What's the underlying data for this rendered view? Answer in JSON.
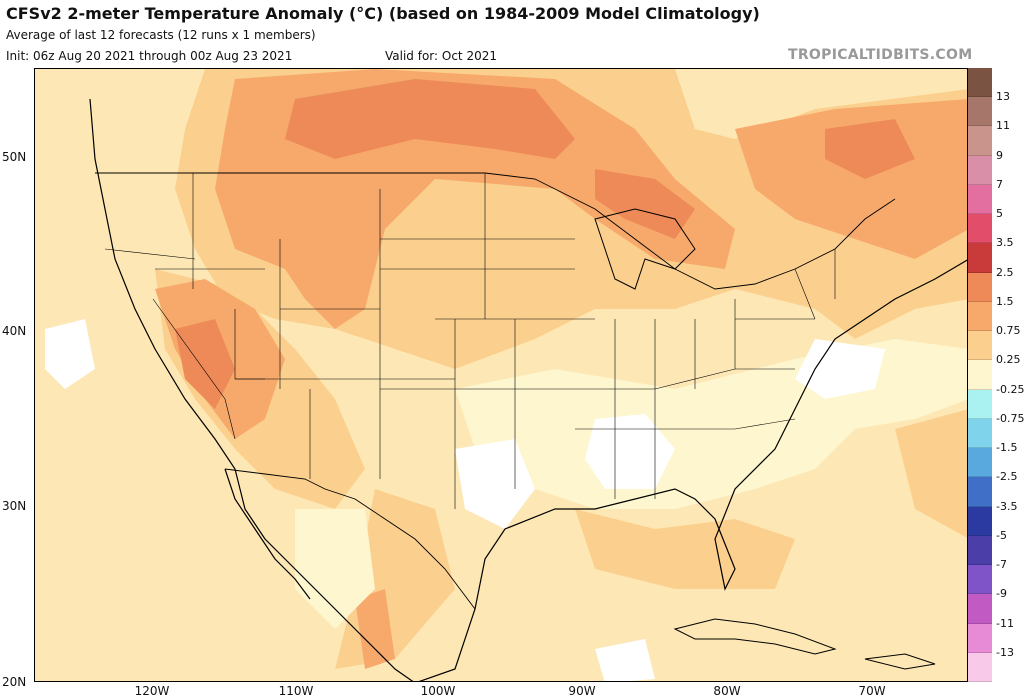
{
  "header": {
    "title": "CFSv2 2-meter Temperature Anomaly (°C) (based on 1984-2009 Model Climatology)",
    "subtitle": "Average of last 12 forecasts (12 runs x 1 members)",
    "init": "Init: 06z Aug 20 2021 through 00z Aug 23 2021",
    "valid": "Valid for: Oct 2021",
    "credit": "TROPICALTIDBITS.COM"
  },
  "map": {
    "lat_labels": [
      "50N",
      "40N",
      "30N",
      "20N"
    ],
    "lon_labels": [
      "120W",
      "110W",
      "100W",
      "90W",
      "80W",
      "70W"
    ],
    "colors": {
      "background": "#fde8b5",
      "anom_025": "#fdf6cf",
      "anom_075": "#fbd08e",
      "anom_15": "#f6a96a",
      "anom_25": "#ee8a58",
      "neutral": "#ffffff",
      "boundary": "#000000"
    }
  },
  "legend": {
    "labels": [
      "13",
      "11",
      "9",
      "7",
      "5",
      "3.5",
      "2.5",
      "1.5",
      "0.75",
      "0.25",
      "-0.25",
      "-0.75",
      "-1.5",
      "-2.5",
      "-3.5",
      "-5",
      "-7",
      "-9",
      "-11",
      "-13"
    ],
    "colors": [
      "#7a5343",
      "#a6766a",
      "#c9948c",
      "#d98fa8",
      "#e36fa0",
      "#e24e6a",
      "#c93a3a",
      "#ee8a58",
      "#f6a96a",
      "#fbd08e",
      "#fdf6cf",
      "#aaf2f2",
      "#7fd3ea",
      "#5aa9de",
      "#3f6fc7",
      "#2b3aa0",
      "#4b3ea8",
      "#7f54c8",
      "#c15bc3",
      "#e88bd7",
      "#f8c9e8"
    ]
  }
}
